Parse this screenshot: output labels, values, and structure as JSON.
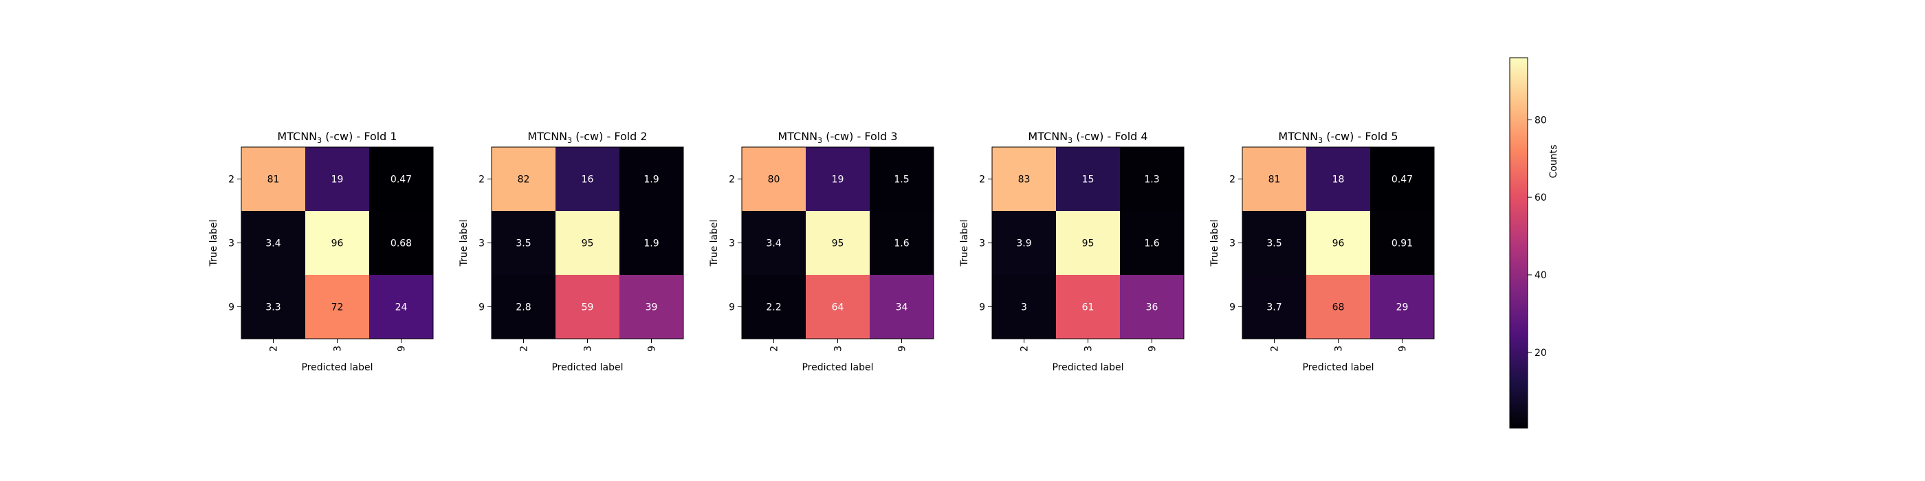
{
  "chart_data": {
    "type": "heatmap",
    "colormap": "magma",
    "colorbar": {
      "label": "Counts",
      "range": [
        0.47,
        96
      ],
      "ticks": [
        20,
        40,
        60,
        80
      ],
      "tick_labels": [
        "20",
        "40",
        "60",
        "80"
      ]
    },
    "panels": [
      {
        "title_prefix": "MTCNN",
        "title_subscript": "3",
        "title_suffix": " (-cw) - Fold 1",
        "xlabel": "Predicted label",
        "ylabel": "True label",
        "x_ticks": [
          "2",
          "3",
          "9"
        ],
        "y_ticks": [
          "2",
          "3",
          "9"
        ],
        "values": [
          [
            81,
            19,
            0.47
          ],
          [
            3.4,
            96,
            0.68
          ],
          [
            3.3,
            72,
            24
          ]
        ],
        "cell_labels": [
          [
            "81",
            "19",
            "0.47"
          ],
          [
            "3.4",
            "96",
            "0.68"
          ],
          [
            "3.3",
            "72",
            "24"
          ]
        ]
      },
      {
        "title_prefix": "MTCNN",
        "title_subscript": "3",
        "title_suffix": " (-cw) - Fold 2",
        "xlabel": "Predicted label",
        "ylabel": "True label",
        "x_ticks": [
          "2",
          "3",
          "9"
        ],
        "y_ticks": [
          "2",
          "3",
          "9"
        ],
        "values": [
          [
            82,
            16,
            1.9
          ],
          [
            3.5,
            95,
            1.9
          ],
          [
            2.8,
            59,
            39
          ]
        ],
        "cell_labels": [
          [
            "82",
            "16",
            "1.9"
          ],
          [
            "3.5",
            "95",
            "1.9"
          ],
          [
            "2.8",
            "59",
            "39"
          ]
        ]
      },
      {
        "title_prefix": "MTCNN",
        "title_subscript": "3",
        "title_suffix": " (-cw) - Fold 3",
        "xlabel": "Predicted label",
        "ylabel": "True label",
        "x_ticks": [
          "2",
          "3",
          "9"
        ],
        "y_ticks": [
          "2",
          "3",
          "9"
        ],
        "values": [
          [
            80,
            19,
            1.5
          ],
          [
            3.4,
            95,
            1.6
          ],
          [
            2.2,
            64,
            34
          ]
        ],
        "cell_labels": [
          [
            "80",
            "19",
            "1.5"
          ],
          [
            "3.4",
            "95",
            "1.6"
          ],
          [
            "2.2",
            "64",
            "34"
          ]
        ]
      },
      {
        "title_prefix": "MTCNN",
        "title_subscript": "3",
        "title_suffix": " (-cw) - Fold 4",
        "xlabel": "Predicted label",
        "ylabel": "True label",
        "x_ticks": [
          "2",
          "3",
          "9"
        ],
        "y_ticks": [
          "2",
          "3",
          "9"
        ],
        "values": [
          [
            83,
            15,
            1.3
          ],
          [
            3.9,
            95,
            1.6
          ],
          [
            3,
            61,
            36
          ]
        ],
        "cell_labels": [
          [
            "83",
            "15",
            "1.3"
          ],
          [
            "3.9",
            "95",
            "1.6"
          ],
          [
            "3",
            "61",
            "36"
          ]
        ]
      },
      {
        "title_prefix": "MTCNN",
        "title_subscript": "3",
        "title_suffix": " (-cw) - Fold 5",
        "xlabel": "Predicted label",
        "ylabel": "True label",
        "x_ticks": [
          "2",
          "3",
          "9"
        ],
        "y_ticks": [
          "2",
          "3",
          "9"
        ],
        "values": [
          [
            81,
            18,
            0.47
          ],
          [
            3.5,
            96,
            0.91
          ],
          [
            3.7,
            68,
            29
          ]
        ],
        "cell_labels": [
          [
            "81",
            "18",
            "0.47"
          ],
          [
            "3.5",
            "96",
            "0.91"
          ],
          [
            "3.7",
            "68",
            "29"
          ]
        ]
      }
    ]
  }
}
